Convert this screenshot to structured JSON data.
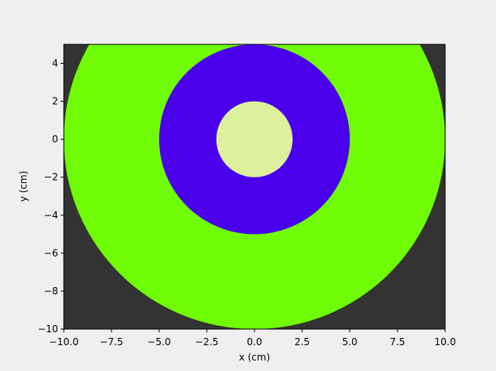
{
  "chart_data": {
    "type": "heatmap",
    "title": "",
    "xlabel": "x (cm)",
    "ylabel": "y (cm)",
    "xlim": [
      -10,
      10
    ],
    "ylim": [
      -10,
      5
    ],
    "xticks": [
      -10.0,
      -7.5,
      -5.0,
      -2.5,
      0.0,
      2.5,
      5.0,
      7.5,
      10.0
    ],
    "xtick_labels": [
      "−10.0",
      "−7.5",
      "−5.0",
      "−2.5",
      "0.0",
      "2.5",
      "5.0",
      "7.5",
      "10.0"
    ],
    "yticks": [
      -10,
      -8,
      -6,
      -4,
      -2,
      0,
      2,
      4
    ],
    "ytick_labels": [
      "−10",
      "−8",
      "−6",
      "−4",
      "−2",
      "0",
      "2",
      "4"
    ],
    "grid": false,
    "background_color": "#333333",
    "regions": [
      {
        "shape": "circle",
        "center": [
          0,
          0
        ],
        "radius": 10,
        "color": "#70fc06"
      },
      {
        "shape": "circle",
        "center": [
          0,
          0
        ],
        "radius": 5,
        "color": "#4b00ec"
      },
      {
        "shape": "circle",
        "center": [
          0,
          0
        ],
        "radius": 2,
        "color": "#ddf19c"
      }
    ]
  }
}
